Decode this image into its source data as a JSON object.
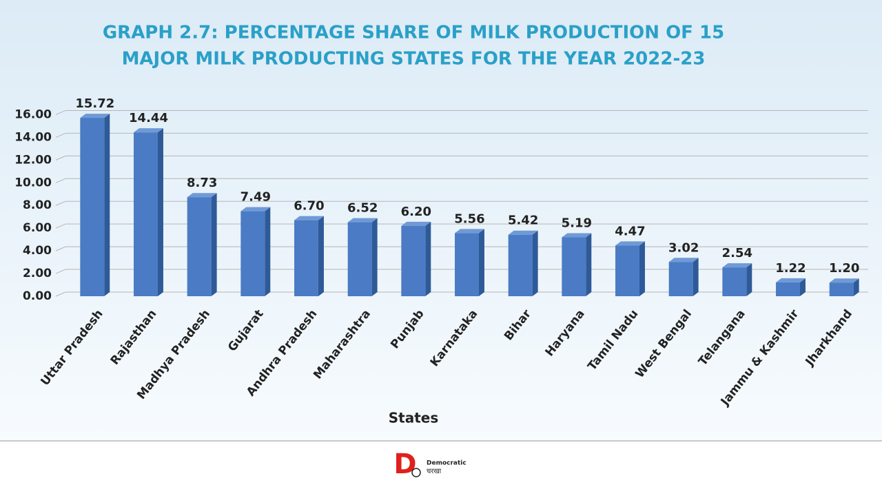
{
  "chart_data": {
    "type": "bar",
    "title": [
      "GRAPH 2.7: PERCENTAGE SHARE OF MILK PRODUCTION OF 15",
      "MAJOR MILK PRODUCTING STATES FOR THE YEAR 2022-23"
    ],
    "x_label": "States",
    "categories": [
      "Uttar Pradesh",
      "Rajasthan",
      "Madhya Pradesh",
      "Gujarat",
      "Andhra Pradesh",
      "Maharashtra",
      "Punjab",
      "Karnataka",
      "Bihar",
      "Haryana",
      "Tamil Nadu",
      "West Bengal",
      "Telangana",
      "Jammu & Kashmir",
      "Jharkhand"
    ],
    "values": [
      15.72,
      14.44,
      8.73,
      7.49,
      6.7,
      6.52,
      6.2,
      5.56,
      5.42,
      5.19,
      4.47,
      3.02,
      2.54,
      1.22,
      1.2
    ],
    "value_labels": [
      "15.72",
      "14.44",
      "8.73",
      "7.49",
      "6.70",
      "6.52",
      "6.20",
      "5.56",
      "5.42",
      "5.19",
      "4.47",
      "3.02",
      "2.54",
      "1.22",
      "1.20"
    ],
    "color": "#4a7bc4",
    "ylim": [
      0,
      17
    ],
    "yticks": [
      {
        "value": 0,
        "label": "0.00"
      },
      {
        "value": 2,
        "label": "2.00"
      },
      {
        "value": 4,
        "label": "4.00"
      },
      {
        "value": 6,
        "label": "6.00"
      },
      {
        "value": 8,
        "label": "8.00"
      },
      {
        "value": 10,
        "label": "10.00"
      },
      {
        "value": 12,
        "label": "12.00"
      },
      {
        "value": 14,
        "label": "14.00"
      },
      {
        "value": 16,
        "label": "16.00"
      }
    ],
    "grid": true
  },
  "footer": {
    "brand_letter": "D",
    "brand_name": "Democratic",
    "brand_script": "चरखा"
  }
}
